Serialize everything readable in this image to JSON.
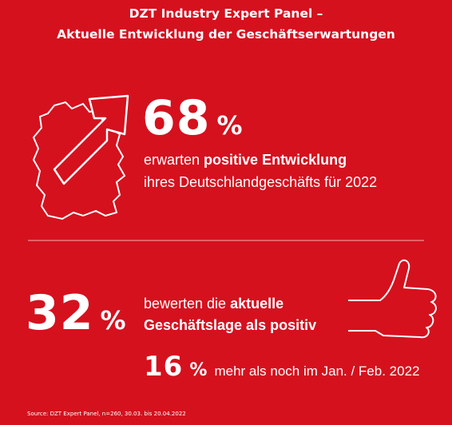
{
  "header": {
    "title_line1": "DZT Industry Expert Panel –",
    "title_line2": "Aktuelle Entwicklung der Geschäftserwartungen"
  },
  "stats": [
    {
      "number": "68",
      "unit": "%",
      "lines": [
        [
          "erwarten ",
          "positive Entwicklung"
        ],
        [
          "ihres Deutschlandgeschäfts für 2022"
        ]
      ]
    },
    {
      "number": "32",
      "unit": "%",
      "lines": [
        [
          "bewerten die ",
          "aktuelle"
        ],
        [
          "Geschäftslage als positiv"
        ]
      ]
    },
    {
      "number": "16",
      "unit": "%",
      "lines": [
        [
          "mehr als noch im Jan. / Feb. 2022"
        ]
      ]
    }
  ],
  "source": "Source: DZT Expert Panel, n=260, 30.03. bis 20.04.2022"
}
